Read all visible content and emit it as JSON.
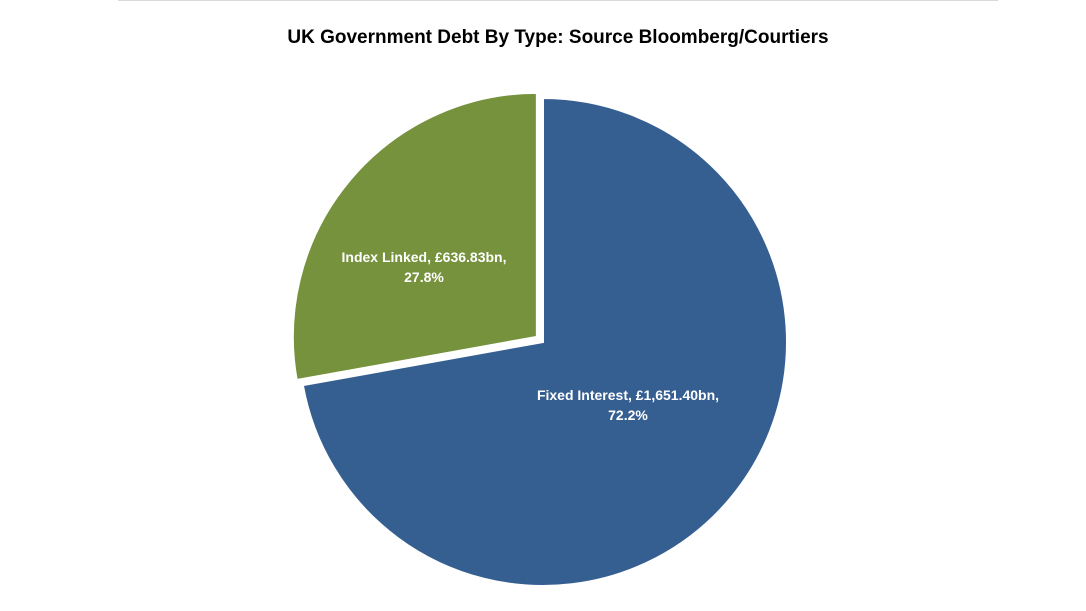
{
  "chart_data": {
    "type": "pie",
    "title": "UK Government  Debt By Type: Source Bloomberg/Courtiers",
    "series": [
      {
        "values": [
          1651.4,
          636.83
        ]
      }
    ],
    "categories": [
      "Fixed Interest",
      "Index Linked"
    ],
    "slices": [
      {
        "category": "Fixed Interest",
        "value": 1651.4,
        "percent": 72.2,
        "label_line1": "Fixed Interest, £1,651.40bn,",
        "label_line2": "72.2%",
        "color": "#365F91",
        "exploded": false
      },
      {
        "category": "Index Linked",
        "value": 636.83,
        "percent": 27.8,
        "label_line1": "Index Linked, £636.83bn,",
        "label_line2": "27.8%",
        "color": "#76923C",
        "exploded": true
      }
    ],
    "unit": "£bn",
    "legend": "none"
  }
}
